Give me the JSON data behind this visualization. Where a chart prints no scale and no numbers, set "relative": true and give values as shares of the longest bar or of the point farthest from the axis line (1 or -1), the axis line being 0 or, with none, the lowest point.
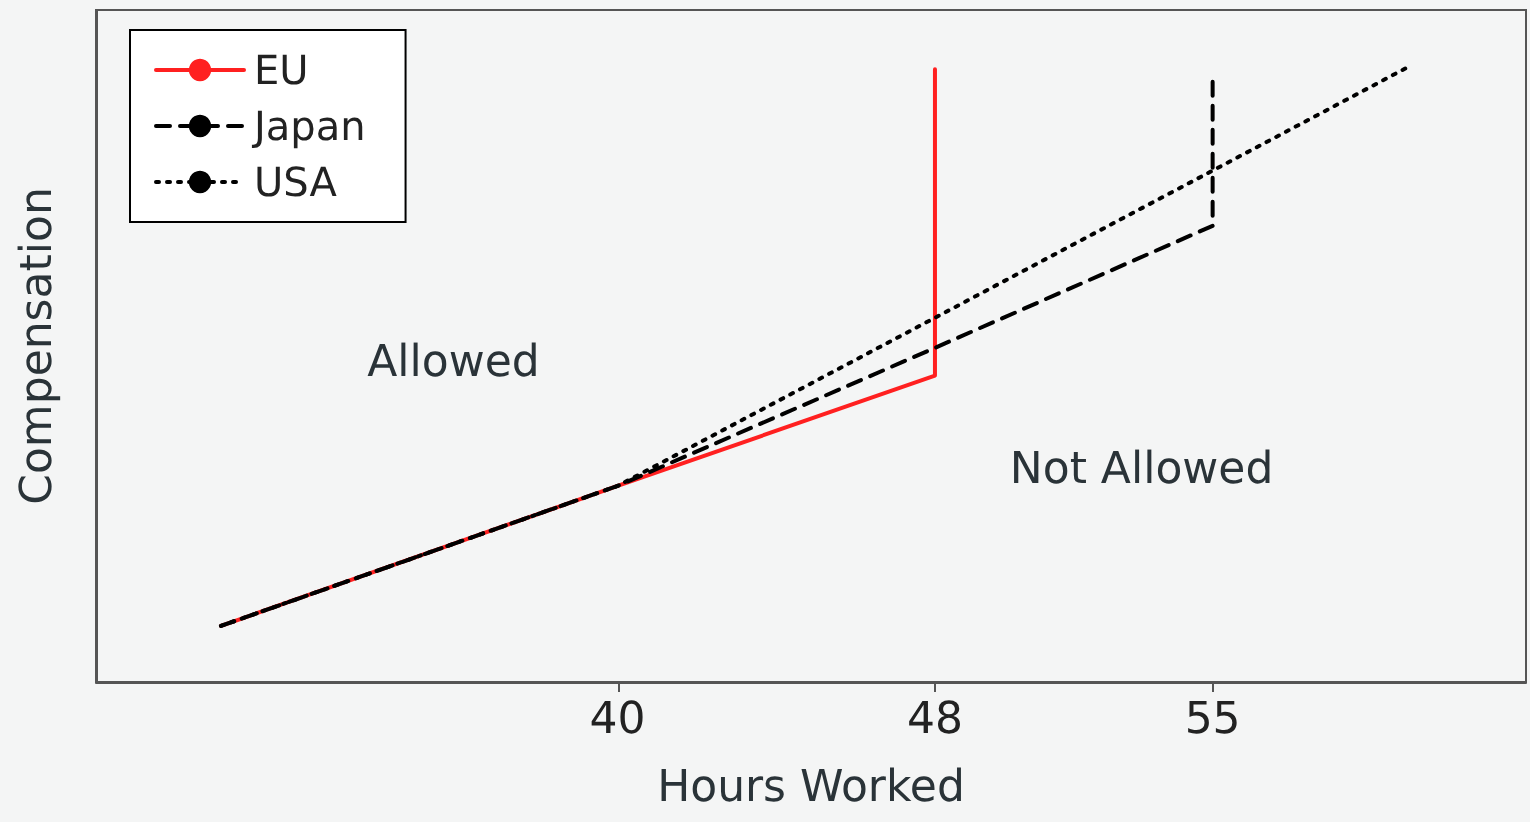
{
  "chart_data": {
    "type": "line",
    "xlabel": "Hours Worked",
    "ylabel": "Compensation",
    "relative": true,
    "xlim": [
      26.85,
      62.9
    ],
    "xticks": [
      40,
      48,
      55
    ],
    "series": [
      {
        "name": "EU",
        "color": "#ff2020",
        "line_style": "solid",
        "x": [
          30,
          40,
          48,
          48
        ],
        "values": [
          0.091,
          0.318,
          0.497,
          0.994
        ]
      },
      {
        "name": "Japan",
        "color": "#000000",
        "line_style": "dashed",
        "x": [
          30,
          40,
          48,
          55,
          55
        ],
        "values": [
          0.091,
          0.318,
          0.542,
          0.74,
          0.974
        ]
      },
      {
        "name": "USA",
        "color": "#000000",
        "line_style": "dotted",
        "x": [
          30,
          40,
          60
        ],
        "values": [
          0.091,
          0.318,
          1
        ]
      }
    ],
    "annotations": [
      "Allowed",
      "Not Allowed"
    ],
    "legend": "top left",
    "grid": false,
    "marker": "none"
  }
}
